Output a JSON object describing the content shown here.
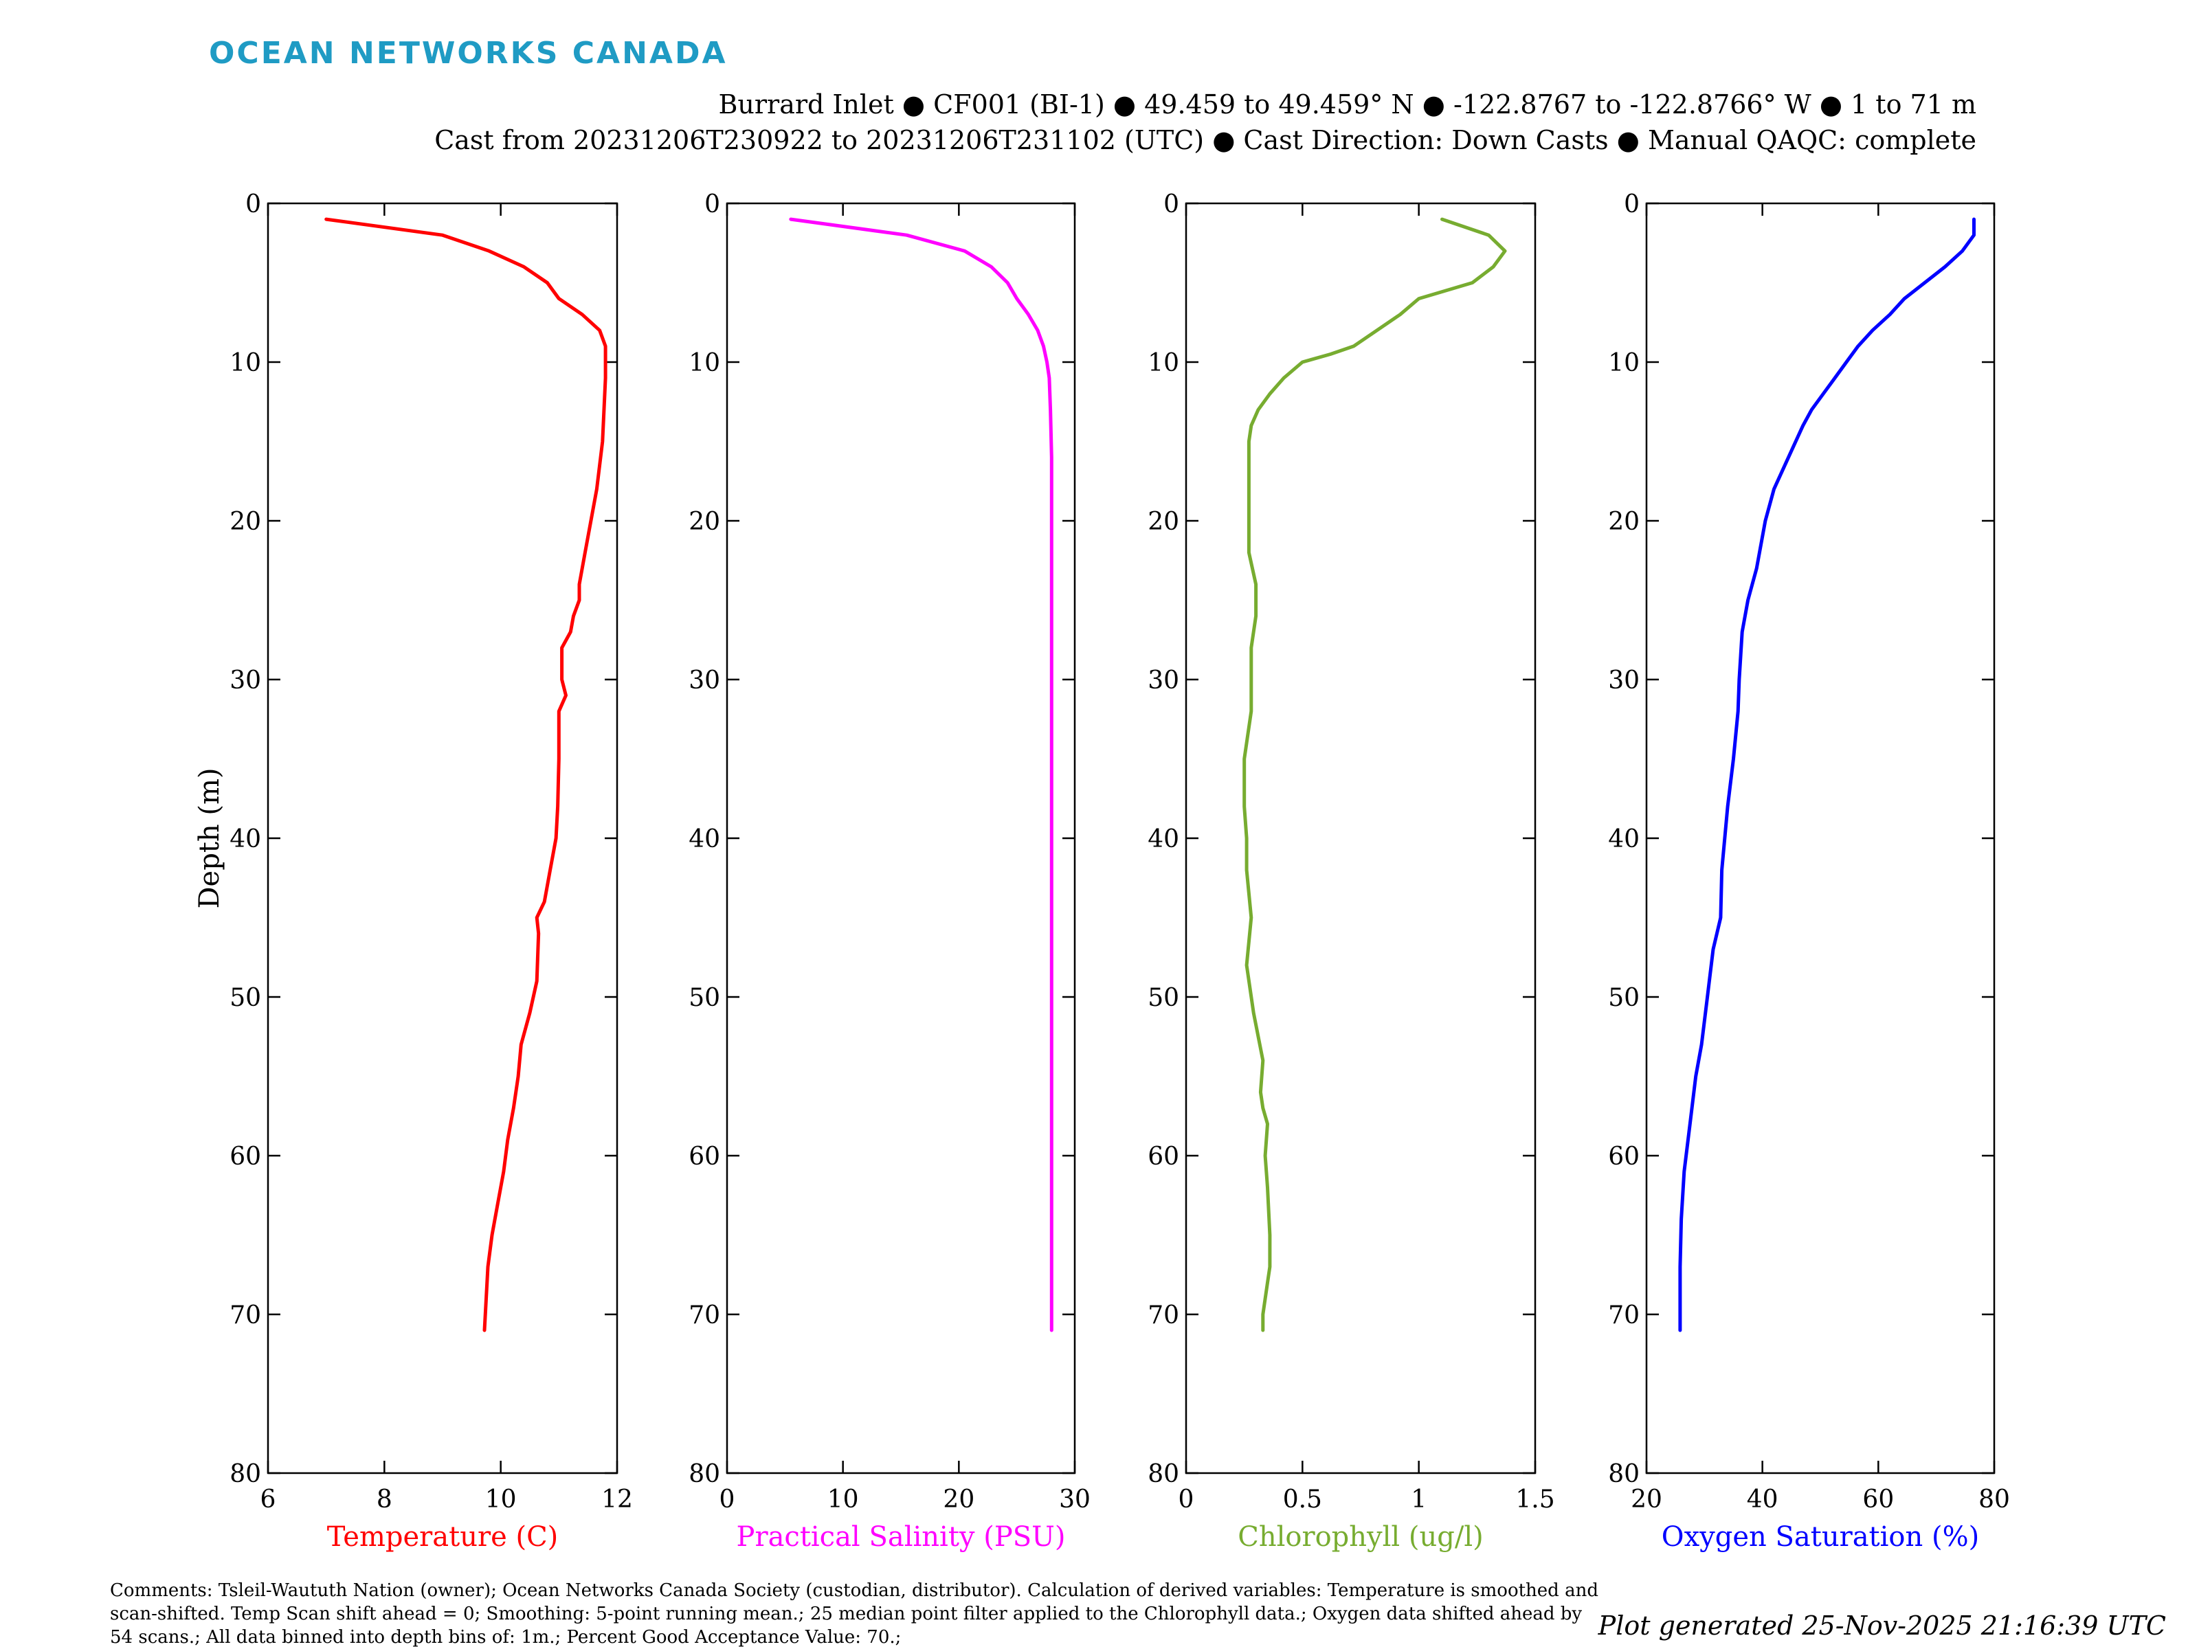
{
  "brand": "OCEAN NETWORKS CANADA",
  "header": {
    "line1": "Burrard Inlet ● CF001 (BI-1) ● 49.459 to 49.459° N ● -122.8767 to -122.8766° W ● 1 to 71 m",
    "line2": "Cast from 20231206T230922 to 20231206T231102 (UTC) ● Cast Direction: Down Casts ● Manual QAQC: complete"
  },
  "y_axis_label": "Depth (m)",
  "comments": "Comments: Tsleil-Waututh Nation (owner); Ocean Networks Canada Society (custodian, distributor). Calculation of derived variables: Temperature is smoothed and scan-shifted. Temp Scan shift ahead = 0; Smoothing: 5-point running mean.; 25 median point filter applied to the Chlorophyll data.; Oxygen data shifted ahead by 54 scans.; All data binned into depth bins of: 1m.; Percent Good Acceptance Value: 70.;",
  "generated": "Plot generated 25-Nov-2025 21:16:39 UTC",
  "chart_data": [
    {
      "type": "line",
      "xlabel": "Temperature (C)",
      "ylabel": "Depth (m)",
      "color": "#ff0000",
      "xlim": [
        6,
        12
      ],
      "ylim": [
        0,
        80
      ],
      "y_reversed": true,
      "xticks": [
        6,
        8,
        10,
        12
      ],
      "yticks": [
        0,
        10,
        20,
        30,
        40,
        50,
        60,
        70,
        80
      ],
      "x": [
        7.0,
        9.0,
        9.8,
        10.4,
        10.8,
        11.0,
        11.4,
        11.7,
        11.8,
        11.8,
        11.8,
        11.75,
        11.65,
        11.55,
        11.45,
        11.35,
        11.35,
        11.25,
        11.2,
        11.05,
        11.05,
        11.12,
        11.0,
        11.0,
        10.98,
        10.95,
        10.85,
        10.75,
        10.62,
        10.65,
        10.62,
        10.5,
        10.35,
        10.3,
        10.22,
        10.12,
        10.05,
        9.95,
        9.85,
        9.78,
        9.75,
        9.72
      ],
      "y": [
        1,
        2,
        3,
        4,
        5,
        6,
        7,
        8,
        9,
        10,
        11,
        15,
        18,
        20,
        22,
        24,
        25,
        26,
        27,
        28,
        30,
        31,
        32,
        35,
        38,
        40,
        42,
        44,
        45,
        46,
        49,
        51,
        53,
        55,
        57,
        59,
        61,
        63,
        65,
        67,
        69,
        71
      ]
    },
    {
      "type": "line",
      "xlabel": "Practical Salinity (PSU)",
      "ylabel": "",
      "color": "#ff00ff",
      "xlim": [
        0,
        30
      ],
      "ylim": [
        0,
        80
      ],
      "y_reversed": true,
      "xticks": [
        0,
        10,
        20,
        30
      ],
      "yticks": [
        0,
        10,
        20,
        30,
        40,
        50,
        60,
        70,
        80
      ],
      "x": [
        5.5,
        15.5,
        20.5,
        22.8,
        24.2,
        25.0,
        26.0,
        26.8,
        27.3,
        27.6,
        27.8,
        27.9,
        28.0,
        28.0,
        28.0,
        28.0,
        28.0,
        28.0
      ],
      "y": [
        1,
        2,
        3,
        4,
        5,
        6,
        7,
        8,
        9,
        10,
        11,
        13,
        16,
        20,
        30,
        40,
        60,
        71
      ]
    },
    {
      "type": "line",
      "xlabel": "Chlorophyll (ug/l)",
      "ylabel": "",
      "color": "#77ac30",
      "xlim": [
        0,
        1.5
      ],
      "ylim": [
        0,
        80
      ],
      "y_reversed": true,
      "xticks": [
        0,
        0.5,
        1,
        1.5
      ],
      "yticks": [
        0,
        10,
        20,
        30,
        40,
        50,
        60,
        70,
        80
      ],
      "x": [
        1.1,
        1.3,
        1.37,
        1.32,
        1.23,
        1.0,
        0.92,
        0.82,
        0.72,
        0.62,
        0.5,
        0.42,
        0.36,
        0.31,
        0.28,
        0.27,
        0.27,
        0.27,
        0.27,
        0.3,
        0.3,
        0.28,
        0.28,
        0.28,
        0.25,
        0.25,
        0.26,
        0.26,
        0.28,
        0.26,
        0.29,
        0.33,
        0.32,
        0.33,
        0.35,
        0.34,
        0.35,
        0.36,
        0.36,
        0.35,
        0.33,
        0.33
      ],
      "y": [
        1,
        2,
        3,
        4,
        5,
        6,
        7,
        8,
        9,
        9.5,
        10,
        11,
        12,
        13,
        14,
        15,
        18,
        20,
        22,
        24,
        26,
        28,
        30,
        32,
        35,
        38,
        40,
        42,
        45,
        48,
        51,
        54,
        56,
        57,
        58,
        60,
        62,
        65,
        67,
        68,
        70,
        71
      ]
    },
    {
      "type": "line",
      "xlabel": "Oxygen Saturation (%)",
      "ylabel": "",
      "color": "#0000ff",
      "xlim": [
        20,
        80
      ],
      "ylim": [
        0,
        80
      ],
      "y_reversed": true,
      "xticks": [
        20,
        40,
        60,
        80
      ],
      "yticks": [
        0,
        10,
        20,
        30,
        40,
        50,
        60,
        70,
        80
      ],
      "x": [
        76.5,
        76.5,
        74.5,
        71.5,
        68.0,
        64.5,
        62.0,
        59.0,
        56.5,
        54.5,
        52.5,
        50.5,
        48.5,
        47.0,
        44.5,
        42.0,
        40.5,
        39.0,
        37.5,
        36.5,
        36.0,
        35.8,
        35.0,
        34.0,
        33.0,
        32.8,
        31.5,
        30.5,
        29.5,
        28.5,
        27.5,
        26.5,
        26.0,
        25.8,
        25.8
      ],
      "y": [
        1,
        2,
        3,
        4,
        5,
        6,
        7,
        8,
        9,
        10,
        11,
        12,
        13,
        14,
        16,
        18,
        20,
        23,
        25,
        27,
        30,
        32,
        35,
        38,
        42,
        45,
        47,
        50,
        53,
        55,
        58,
        61,
        64,
        67,
        71
      ]
    }
  ]
}
